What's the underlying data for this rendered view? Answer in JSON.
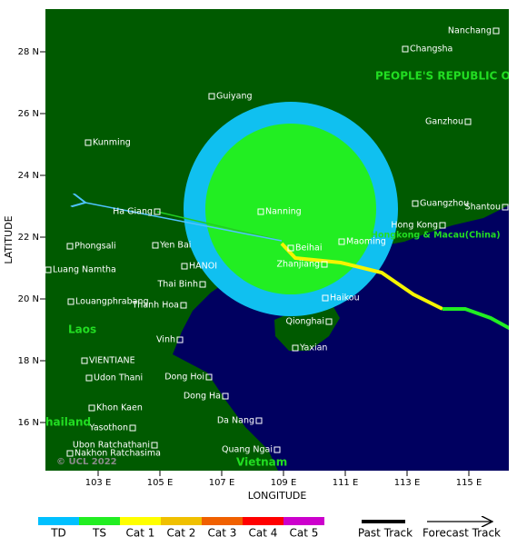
{
  "map": {
    "lat_ticks": [
      {
        "value": 28,
        "label": "28 N"
      },
      {
        "value": 26,
        "label": "26 N"
      },
      {
        "value": 24,
        "label": "24 N"
      },
      {
        "value": 22,
        "label": "22 N"
      },
      {
        "value": 20,
        "label": "20 N"
      },
      {
        "value": 18,
        "label": "18 N"
      },
      {
        "value": 16,
        "label": "16 N"
      }
    ],
    "lon_ticks": [
      {
        "value": 103,
        "label": "103 E"
      },
      {
        "value": 105,
        "label": "105 E"
      },
      {
        "value": 107,
        "label": "107 E"
      },
      {
        "value": 109,
        "label": "109 E"
      },
      {
        "value": 111,
        "label": "111 E"
      },
      {
        "value": 113,
        "label": "113 E"
      },
      {
        "value": 115,
        "label": "115 E"
      }
    ],
    "x_label": "LONGITUDE",
    "y_label": "LATITUDE",
    "regions": [
      "PEOPLE'S REPUBLIC O",
      "Laos",
      "Vietnam",
      "hailand",
      "Hongkong & Macau(China)"
    ],
    "copyright": "© UCL 2022",
    "cities": [
      "Nanchang",
      "Changsha",
      "Guiyang",
      "Ganzhou",
      "Kunming",
      "Guangzhou",
      "Shantou",
      "Ha Giang",
      "Nanning",
      "Hong Kong",
      "Phongsali",
      "Yen Bai",
      "Beihai",
      "Maoming",
      "Luang Namtha",
      "HANOI",
      "Zhanjiang",
      "Thai Binh",
      "Louangphrabang",
      "Haikou",
      "Thanh Hoa",
      "Qionghai",
      "Vinh",
      "Yaxian",
      "VIENTIANE",
      "Udon Thani",
      "Dong Hoi",
      "Dong Ha",
      "Khon Kaen",
      "Da Nang",
      "Yasothon",
      "Ubon Ratchathani",
      "Quang Ngai",
      "Nakhon Ratchasima"
    ]
  },
  "legend": {
    "intensity": [
      {
        "label": "TD",
        "color": "#00c0ff"
      },
      {
        "label": "TS",
        "color": "#22ee22"
      },
      {
        "label": "Cat 1",
        "color": "#ffff00"
      },
      {
        "label": "Cat 2",
        "color": "#f0c000"
      },
      {
        "label": "Cat 3",
        "color": "#f06000"
      },
      {
        "label": "Cat 4",
        "color": "#ff0000"
      },
      {
        "label": "Cat 5",
        "color": "#cc00cc"
      }
    ],
    "past_track": "Past Track",
    "forecast_track": "Forecast Track"
  }
}
